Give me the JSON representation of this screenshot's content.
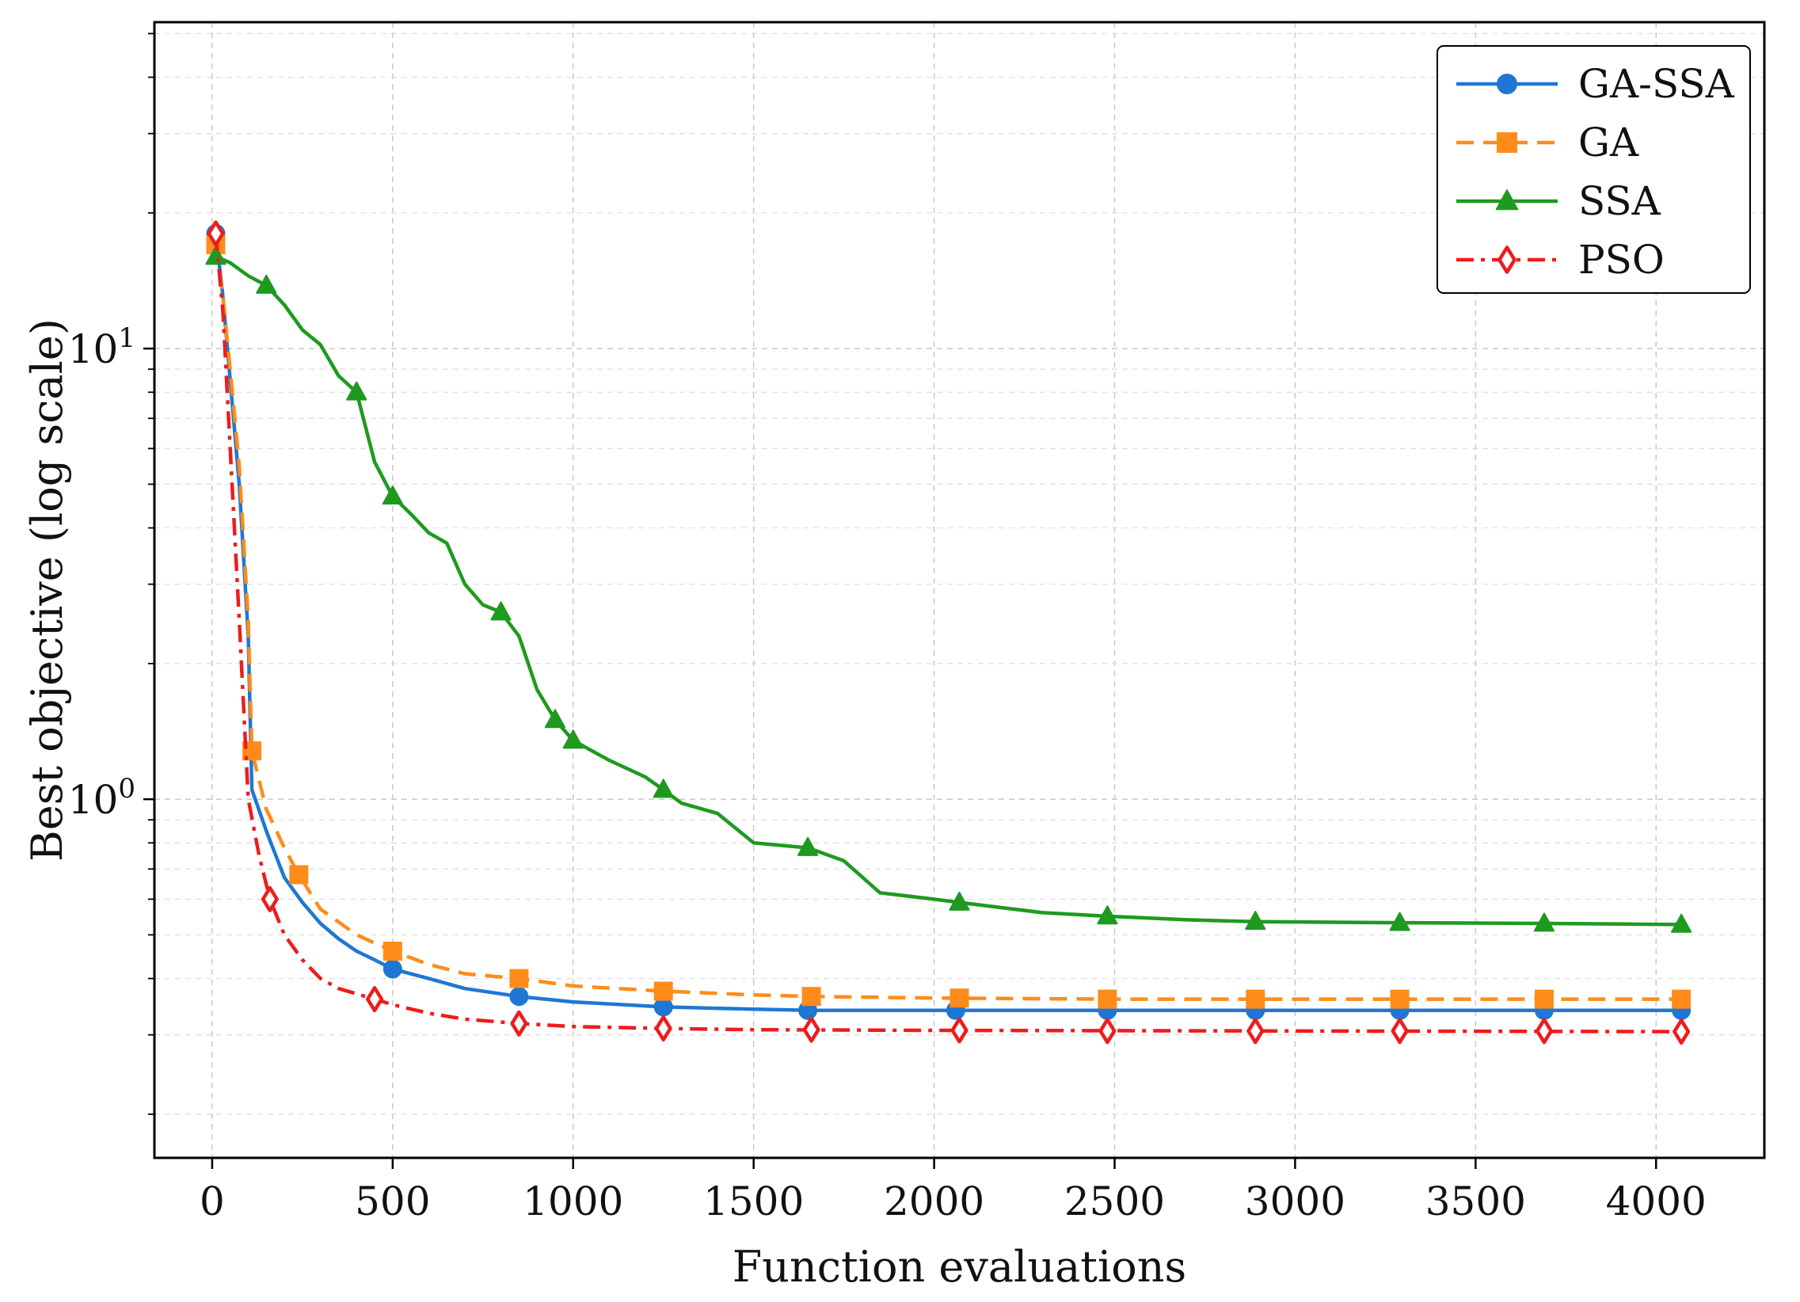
{
  "chart_data": {
    "type": "line",
    "xlabel": "Function evaluations",
    "ylabel": "Best objective (log scale)",
    "yscale": "log",
    "xlim": [
      -160,
      4300
    ],
    "ylim": [
      0.16,
      53
    ],
    "x_ticks": [
      0,
      500,
      1000,
      1500,
      2000,
      2500,
      3000,
      3500,
      4000
    ],
    "x_tick_labels": [
      "0",
      "500",
      "1000",
      "1500",
      "2000",
      "2500",
      "3000",
      "3500",
      "4000"
    ],
    "y_ticks": [
      {
        "value": 10,
        "base": "10",
        "exp": "1"
      },
      {
        "value": 1,
        "base": "10",
        "exp": "0"
      }
    ],
    "grid": true,
    "legend": {
      "placement": "top-right"
    },
    "series": [
      {
        "name": "GA-SSA",
        "color": "#1f77d4",
        "linestyle": "solid",
        "marker": "circle",
        "filled": true,
        "points": [
          [
            10,
            18.0
          ],
          [
            30,
            13.0
          ],
          [
            50,
            8.5
          ],
          [
            75,
            5.0
          ],
          [
            100,
            2.3
          ],
          [
            110,
            1.05
          ],
          [
            150,
            0.85
          ],
          [
            200,
            0.67
          ],
          [
            250,
            0.59
          ],
          [
            300,
            0.53
          ],
          [
            350,
            0.49
          ],
          [
            400,
            0.46
          ],
          [
            450,
            0.44
          ],
          [
            500,
            0.42
          ],
          [
            600,
            0.4
          ],
          [
            700,
            0.38
          ],
          [
            850,
            0.365
          ],
          [
            1000,
            0.355
          ],
          [
            1250,
            0.346
          ],
          [
            1500,
            0.342
          ],
          [
            1650,
            0.34
          ],
          [
            2000,
            0.34
          ],
          [
            2500,
            0.34
          ],
          [
            3000,
            0.34
          ],
          [
            3500,
            0.34
          ],
          [
            4070,
            0.34
          ]
        ],
        "markers": [
          [
            10,
            18.0
          ],
          [
            500,
            0.42
          ],
          [
            850,
            0.365
          ],
          [
            1250,
            0.346
          ],
          [
            1650,
            0.34
          ],
          [
            2060,
            0.34
          ],
          [
            2480,
            0.34
          ],
          [
            2890,
            0.34
          ],
          [
            3290,
            0.34
          ],
          [
            3690,
            0.34
          ],
          [
            4070,
            0.34
          ]
        ]
      },
      {
        "name": "GA",
        "color": "#ff8c1a",
        "linestyle": "dashed",
        "marker": "square",
        "filled": true,
        "points": [
          [
            10,
            17.0
          ],
          [
            30,
            13.0
          ],
          [
            50,
            9.0
          ],
          [
            75,
            5.5
          ],
          [
            100,
            2.5
          ],
          [
            110,
            1.28
          ],
          [
            150,
            0.95
          ],
          [
            200,
            0.78
          ],
          [
            240,
            0.68
          ],
          [
            300,
            0.57
          ],
          [
            400,
            0.5
          ],
          [
            500,
            0.46
          ],
          [
            600,
            0.43
          ],
          [
            700,
            0.41
          ],
          [
            850,
            0.4
          ],
          [
            1000,
            0.385
          ],
          [
            1250,
            0.375
          ],
          [
            1500,
            0.368
          ],
          [
            1660,
            0.365
          ],
          [
            2000,
            0.362
          ],
          [
            2500,
            0.36
          ],
          [
            3000,
            0.36
          ],
          [
            3500,
            0.36
          ],
          [
            4070,
            0.36
          ]
        ],
        "markers": [
          [
            10,
            17.0
          ],
          [
            110,
            1.28
          ],
          [
            240,
            0.68
          ],
          [
            500,
            0.46
          ],
          [
            850,
            0.4
          ],
          [
            1250,
            0.375
          ],
          [
            1660,
            0.365
          ],
          [
            2070,
            0.362
          ],
          [
            2480,
            0.36
          ],
          [
            2890,
            0.36
          ],
          [
            3290,
            0.36
          ],
          [
            3690,
            0.36
          ],
          [
            4070,
            0.36
          ]
        ]
      },
      {
        "name": "SSA",
        "color": "#1e9a1e",
        "linestyle": "solid",
        "marker": "triangle",
        "filled": true,
        "points": [
          [
            10,
            16.0
          ],
          [
            50,
            15.5
          ],
          [
            100,
            14.5
          ],
          [
            150,
            13.8
          ],
          [
            200,
            12.5
          ],
          [
            250,
            11.0
          ],
          [
            300,
            10.2
          ],
          [
            350,
            8.7
          ],
          [
            400,
            8.0
          ],
          [
            450,
            5.6
          ],
          [
            500,
            4.7
          ],
          [
            550,
            4.3
          ],
          [
            600,
            3.9
          ],
          [
            650,
            3.7
          ],
          [
            700,
            3.0
          ],
          [
            750,
            2.7
          ],
          [
            800,
            2.6
          ],
          [
            850,
            2.3
          ],
          [
            900,
            1.75
          ],
          [
            950,
            1.5
          ],
          [
            1000,
            1.35
          ],
          [
            1100,
            1.22
          ],
          [
            1200,
            1.12
          ],
          [
            1250,
            1.05
          ],
          [
            1300,
            0.98
          ],
          [
            1400,
            0.93
          ],
          [
            1500,
            0.8
          ],
          [
            1650,
            0.78
          ],
          [
            1750,
            0.73
          ],
          [
            1850,
            0.62
          ],
          [
            2000,
            0.6
          ],
          [
            2070,
            0.59
          ],
          [
            2300,
            0.56
          ],
          [
            2480,
            0.55
          ],
          [
            2700,
            0.54
          ],
          [
            2890,
            0.535
          ],
          [
            3290,
            0.532
          ],
          [
            3690,
            0.53
          ],
          [
            4070,
            0.527
          ]
        ],
        "markers": [
          [
            10,
            16.0
          ],
          [
            150,
            13.8
          ],
          [
            400,
            8.0
          ],
          [
            500,
            4.7
          ],
          [
            800,
            2.6
          ],
          [
            950,
            1.5
          ],
          [
            1000,
            1.35
          ],
          [
            1250,
            1.05
          ],
          [
            1650,
            0.78
          ],
          [
            2070,
            0.59
          ],
          [
            2480,
            0.55
          ],
          [
            2890,
            0.535
          ],
          [
            3290,
            0.532
          ],
          [
            3690,
            0.53
          ],
          [
            4070,
            0.527
          ]
        ]
      },
      {
        "name": "PSO",
        "color": "#ee1c1c",
        "linestyle": "dashdot",
        "marker": "diamond",
        "filled": false,
        "points": [
          [
            10,
            18.0
          ],
          [
            30,
            12.0
          ],
          [
            50,
            6.0
          ],
          [
            75,
            2.5
          ],
          [
            100,
            1.0
          ],
          [
            130,
            0.75
          ],
          [
            160,
            0.6
          ],
          [
            200,
            0.5
          ],
          [
            250,
            0.44
          ],
          [
            300,
            0.4
          ],
          [
            350,
            0.38
          ],
          [
            450,
            0.36
          ],
          [
            500,
            0.35
          ],
          [
            600,
            0.335
          ],
          [
            700,
            0.325
          ],
          [
            850,
            0.318
          ],
          [
            1000,
            0.313
          ],
          [
            1250,
            0.31
          ],
          [
            1500,
            0.308
          ],
          [
            2000,
            0.307
          ],
          [
            3000,
            0.306
          ],
          [
            4070,
            0.305
          ]
        ],
        "markers": [
          [
            10,
            18.0
          ],
          [
            160,
            0.6
          ],
          [
            450,
            0.36
          ],
          [
            850,
            0.318
          ],
          [
            1250,
            0.31
          ],
          [
            1660,
            0.308
          ],
          [
            2070,
            0.307
          ],
          [
            2480,
            0.306
          ],
          [
            2890,
            0.306
          ],
          [
            3290,
            0.306
          ],
          [
            3690,
            0.306
          ],
          [
            4070,
            0.305
          ]
        ]
      }
    ]
  }
}
